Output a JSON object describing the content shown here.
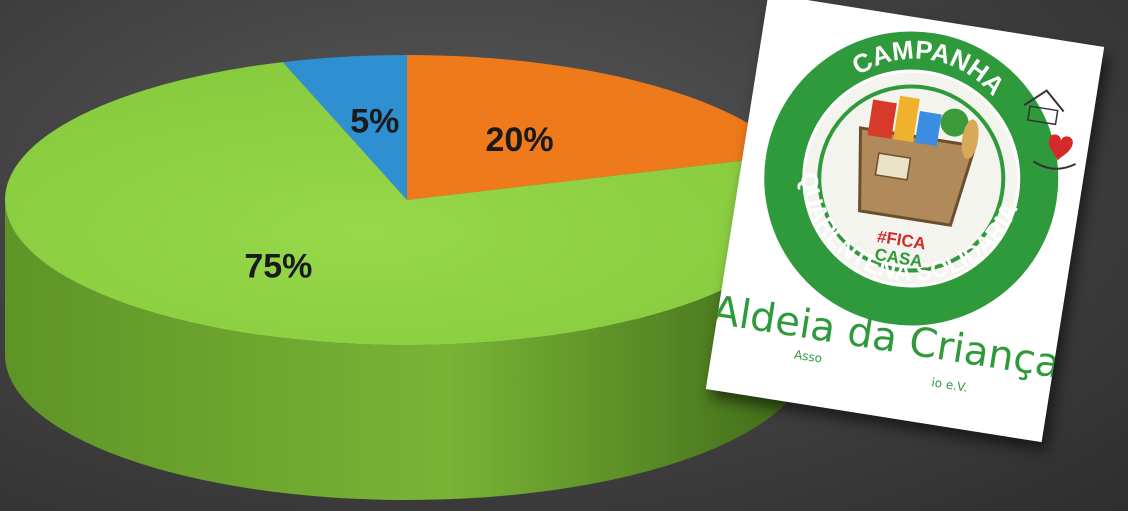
{
  "chart_data": {
    "type": "pie",
    "style": "3d",
    "slices": [
      {
        "label": "5%",
        "value": 5,
        "color": "#2e8fd1"
      },
      {
        "label": "20%",
        "value": 20,
        "color": "#ee7a1c"
      },
      {
        "label": "75%",
        "value": 75,
        "color": "#8cd13e"
      }
    ],
    "title": "",
    "legend": "none"
  },
  "logo": {
    "top_text": "CAMPANHA",
    "ring_text": "QUARENTENA SOLIDÁRIA",
    "hashtag_line1": "#FICA",
    "hashtag_line2": "CASA",
    "name": "Aldeia da Criança",
    "tagline_left": "Asso",
    "tagline_right": "io e.V."
  }
}
